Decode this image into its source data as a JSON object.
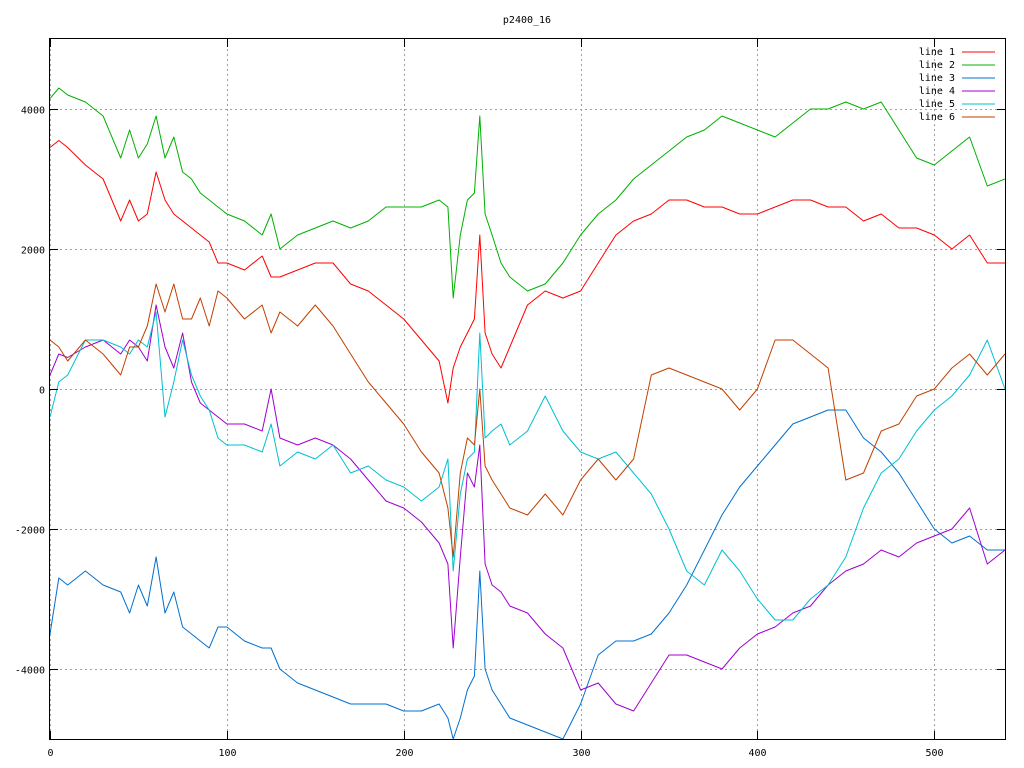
{
  "chart_data": {
    "type": "line",
    "title": "p2400_16",
    "xlabel": "",
    "ylabel": "",
    "xlim": [
      0,
      540
    ],
    "ylim": [
      -5000,
      5000
    ],
    "xticks": [
      0,
      100,
      200,
      300,
      400,
      500
    ],
    "yticks": [
      -4000,
      -2000,
      0,
      2000,
      4000
    ],
    "xtick_labels": [
      "0",
      "100",
      "200",
      "300",
      "400",
      "500"
    ],
    "ytick_labels": [
      "-4000",
      "-2000",
      "0",
      "2000",
      "4000"
    ],
    "grid": true,
    "legend_position": "top-right",
    "series": [
      {
        "name": "line 1",
        "color": "#ff0000",
        "x": [
          0,
          5,
          10,
          20,
          30,
          40,
          45,
          50,
          55,
          60,
          65,
          70,
          75,
          80,
          85,
          90,
          95,
          100,
          110,
          120,
          125,
          130,
          140,
          150,
          160,
          170,
          180,
          190,
          200,
          210,
          220,
          225,
          228,
          232,
          236,
          240,
          243,
          246,
          250,
          255,
          260,
          270,
          280,
          290,
          300,
          310,
          320,
          330,
          340,
          350,
          360,
          370,
          380,
          390,
          400,
          410,
          420,
          430,
          440,
          450,
          460,
          470,
          480,
          490,
          500,
          510,
          520,
          530,
          540
        ],
        "y": [
          3450,
          3550,
          3450,
          3200,
          3000,
          2400,
          2700,
          2400,
          2500,
          3100,
          2700,
          2500,
          2400,
          2300,
          2200,
          2100,
          1800,
          1800,
          1700,
          1900,
          1600,
          1600,
          1700,
          1800,
          1800,
          1500,
          1400,
          1200,
          1000,
          700,
          400,
          -200,
          300,
          600,
          800,
          1000,
          2200,
          800,
          500,
          300,
          600,
          1200,
          1400,
          1300,
          1400,
          1800,
          2200,
          2400,
          2500,
          2700,
          2700,
          2600,
          2600,
          2500,
          2500,
          2600,
          2700,
          2700,
          2600,
          2600,
          2400,
          2500,
          2300,
          2300,
          2200,
          2000,
          2200,
          1800,
          1800
        ]
      },
      {
        "name": "line 2",
        "color": "#00b000",
        "x": [
          0,
          5,
          10,
          20,
          30,
          40,
          45,
          50,
          55,
          60,
          65,
          70,
          75,
          80,
          85,
          90,
          95,
          100,
          110,
          120,
          125,
          130,
          140,
          150,
          160,
          170,
          180,
          190,
          200,
          210,
          220,
          225,
          228,
          232,
          236,
          240,
          243,
          246,
          250,
          255,
          260,
          270,
          280,
          290,
          300,
          310,
          320,
          330,
          340,
          350,
          360,
          370,
          380,
          390,
          400,
          410,
          420,
          430,
          440,
          450,
          460,
          470,
          480,
          490,
          500,
          510,
          520,
          530,
          540
        ],
        "y": [
          4150,
          4300,
          4200,
          4100,
          3900,
          3300,
          3700,
          3300,
          3500,
          3900,
          3300,
          3600,
          3100,
          3000,
          2800,
          2700,
          2600,
          2500,
          2400,
          2200,
          2500,
          2000,
          2200,
          2300,
          2400,
          2300,
          2400,
          2600,
          2600,
          2600,
          2700,
          2600,
          1300,
          2200,
          2700,
          2800,
          3900,
          2500,
          2200,
          1800,
          1600,
          1400,
          1500,
          1800,
          2200,
          2500,
          2700,
          3000,
          3200,
          3400,
          3600,
          3700,
          3900,
          3800,
          3700,
          3600,
          3800,
          4000,
          4000,
          4100,
          4000,
          4100,
          3700,
          3300,
          3200,
          3400,
          3600,
          2900,
          3000
        ]
      },
      {
        "name": "line 3",
        "color": "#0070d0",
        "x": [
          0,
          5,
          10,
          20,
          30,
          40,
          45,
          50,
          55,
          60,
          65,
          70,
          75,
          80,
          85,
          90,
          95,
          100,
          110,
          120,
          125,
          130,
          140,
          150,
          160,
          170,
          180,
          190,
          200,
          210,
          220,
          225,
          228,
          232,
          236,
          240,
          243,
          246,
          250,
          255,
          260,
          270,
          280,
          290,
          300,
          310,
          320,
          330,
          340,
          350,
          360,
          370,
          380,
          390,
          400,
          410,
          420,
          430,
          440,
          450,
          460,
          470,
          480,
          490,
          500,
          510,
          520,
          530,
          540
        ],
        "y": [
          -3500,
          -2700,
          -2800,
          -2600,
          -2800,
          -2900,
          -3200,
          -2800,
          -3100,
          -2400,
          -3200,
          -2900,
          -3400,
          -3500,
          -3600,
          -3700,
          -3400,
          -3400,
          -3600,
          -3700,
          -3700,
          -4000,
          -4200,
          -4300,
          -4400,
          -4500,
          -4500,
          -4500,
          -4600,
          -4600,
          -4500,
          -4700,
          -5000,
          -4700,
          -4300,
          -4100,
          -2600,
          -4000,
          -4300,
          -4500,
          -4700,
          -4800,
          -4900,
          -5000,
          -4500,
          -3800,
          -3600,
          -3600,
          -3500,
          -3200,
          -2800,
          -2300,
          -1800,
          -1400,
          -1100,
          -800,
          -500,
          -400,
          -300,
          -300,
          -700,
          -900,
          -1200,
          -1600,
          -2000,
          -2200,
          -2100,
          -2300,
          -2300
        ]
      },
      {
        "name": "line 4",
        "color": "#a000d0",
        "x": [
          0,
          5,
          10,
          20,
          30,
          40,
          45,
          50,
          55,
          60,
          65,
          70,
          75,
          80,
          85,
          90,
          95,
          100,
          110,
          120,
          125,
          130,
          140,
          150,
          160,
          170,
          180,
          190,
          200,
          210,
          220,
          225,
          228,
          232,
          236,
          240,
          243,
          246,
          250,
          255,
          260,
          270,
          280,
          290,
          300,
          310,
          320,
          330,
          340,
          350,
          360,
          370,
          380,
          390,
          400,
          410,
          420,
          430,
          440,
          450,
          460,
          470,
          480,
          490,
          500,
          510,
          520,
          530,
          540
        ],
        "y": [
          200,
          500,
          450,
          600,
          700,
          500,
          700,
          600,
          400,
          1200,
          600,
          300,
          800,
          100,
          -200,
          -300,
          -400,
          -500,
          -500,
          -600,
          0,
          -700,
          -800,
          -700,
          -800,
          -1000,
          -1300,
          -1600,
          -1700,
          -1900,
          -2200,
          -2500,
          -3700,
          -2400,
          -1200,
          -1400,
          -800,
          -2500,
          -2800,
          -2900,
          -3100,
          -3200,
          -3500,
          -3700,
          -4300,
          -4200,
          -4500,
          -4600,
          -4200,
          -3800,
          -3800,
          -3900,
          -4000,
          -3700,
          -3500,
          -3400,
          -3200,
          -3100,
          -2800,
          -2600,
          -2500,
          -2300,
          -2400,
          -2200,
          -2100,
          -2000,
          -1700,
          -2500,
          -2300
        ]
      },
      {
        "name": "line 5",
        "color": "#00c0d0",
        "x": [
          0,
          5,
          10,
          20,
          30,
          40,
          45,
          50,
          55,
          60,
          65,
          70,
          75,
          80,
          85,
          90,
          95,
          100,
          110,
          120,
          125,
          130,
          140,
          150,
          160,
          170,
          180,
          190,
          200,
          210,
          220,
          225,
          228,
          232,
          236,
          240,
          243,
          246,
          250,
          255,
          260,
          270,
          280,
          290,
          300,
          310,
          320,
          330,
          340,
          350,
          360,
          370,
          380,
          390,
          400,
          410,
          420,
          430,
          440,
          450,
          460,
          470,
          480,
          490,
          500,
          510,
          520,
          530,
          540
        ],
        "y": [
          -400,
          100,
          200,
          700,
          700,
          600,
          500,
          700,
          600,
          1100,
          -400,
          100,
          700,
          200,
          -100,
          -300,
          -700,
          -800,
          -800,
          -900,
          -500,
          -1100,
          -900,
          -1000,
          -800,
          -1200,
          -1100,
          -1300,
          -1400,
          -1600,
          -1400,
          -1000,
          -2600,
          -1500,
          -1000,
          -900,
          800,
          -700,
          -600,
          -500,
          -800,
          -600,
          -100,
          -600,
          -900,
          -1000,
          -900,
          -1200,
          -1500,
          -2000,
          -2600,
          -2800,
          -2300,
          -2600,
          -3000,
          -3300,
          -3300,
          -3000,
          -2800,
          -2400,
          -1700,
          -1200,
          -1000,
          -600,
          -300,
          -100,
          200,
          700,
          0
        ]
      },
      {
        "name": "line 6",
        "color": "#c04000",
        "x": [
          0,
          5,
          10,
          20,
          30,
          40,
          45,
          50,
          55,
          60,
          65,
          70,
          75,
          80,
          85,
          90,
          95,
          100,
          110,
          120,
          125,
          130,
          140,
          150,
          160,
          170,
          180,
          190,
          200,
          210,
          220,
          225,
          228,
          232,
          236,
          240,
          243,
          246,
          250,
          255,
          260,
          270,
          280,
          290,
          300,
          310,
          320,
          330,
          340,
          350,
          360,
          370,
          380,
          390,
          400,
          410,
          420,
          430,
          440,
          450,
          460,
          470,
          480,
          490,
          500,
          510,
          520,
          530,
          540
        ],
        "y": [
          700,
          600,
          400,
          700,
          500,
          200,
          600,
          600,
          900,
          1500,
          1100,
          1500,
          1000,
          1000,
          1300,
          900,
          1400,
          1300,
          1000,
          1200,
          800,
          1100,
          900,
          1200,
          900,
          500,
          100,
          -200,
          -500,
          -900,
          -1200,
          -1700,
          -2400,
          -1200,
          -700,
          -800,
          0,
          -1100,
          -1300,
          -1500,
          -1700,
          -1800,
          -1500,
          -1800,
          -1300,
          -1000,
          -1300,
          -1000,
          200,
          300,
          200,
          100,
          0,
          -300,
          0,
          700,
          700,
          500,
          300,
          -1300,
          -1200,
          -600,
          -500,
          -100,
          0,
          300,
          500,
          200,
          500
        ]
      }
    ]
  }
}
